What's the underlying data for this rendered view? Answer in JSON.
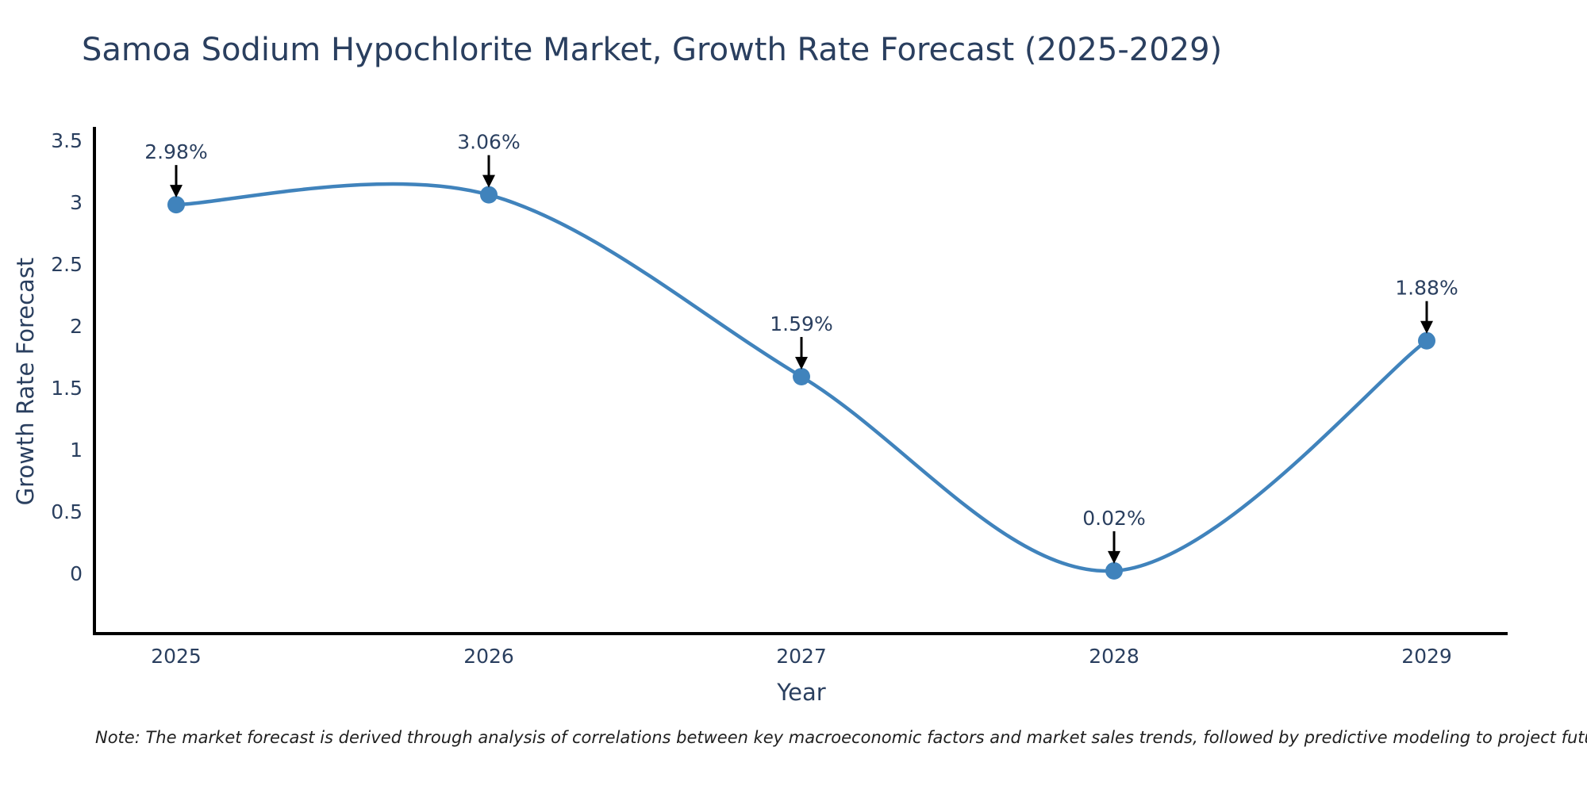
{
  "note": "Note: The market forecast is derived through analysis of correlations between key macroeconomic factors and market sales trends, followed by predictive modeling to project future sales",
  "chart_data": {
    "type": "line",
    "title": "Samoa Sodium Hypochlorite Market, Growth Rate Forecast (2025-2029)",
    "xlabel": "Year",
    "ylabel": "Growth Rate Forecast",
    "x": [
      2025,
      2026,
      2027,
      2028,
      2029
    ],
    "y": [
      2.98,
      3.06,
      1.59,
      0.02,
      1.88
    ],
    "point_labels": [
      "2.98%",
      "3.06%",
      "1.59%",
      "0.02%",
      "1.88%"
    ],
    "xticks": [
      "2025",
      "2026",
      "2027",
      "2028",
      "2029"
    ],
    "yticks": [
      0,
      0.5,
      1,
      1.5,
      2,
      2.5,
      3,
      3.5
    ],
    "xlim": [
      2024.73,
      2029.27
    ],
    "ylim": [
      -0.5,
      3.6
    ],
    "line_shape": "spline",
    "grid": false,
    "legend": false,
    "markers": true,
    "annotations_with_arrows": true,
    "colors": {
      "line": "#4083bc",
      "marker": "#4083bc",
      "arrow": "#000000",
      "axis": "#000000",
      "tick_text": "#2a3f5f",
      "title_text": "#2a3f5f",
      "note_text": "#1f1f1f"
    }
  }
}
